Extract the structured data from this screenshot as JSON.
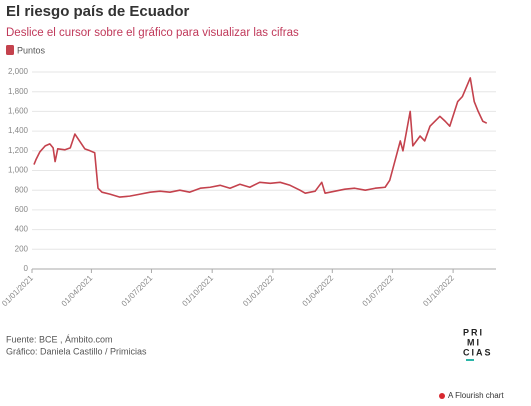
{
  "chart_data": {
    "type": "line",
    "title": "El riesgo país de Ecuador",
    "subtitle": "Deslice el cursor sobre el gráfico para visualizar las cifras",
    "x": [
      "2021-01-04",
      "2021-01-07",
      "2021-01-13",
      "2021-01-21",
      "2021-01-28",
      "2021-02-02",
      "2021-02-05",
      "2021-02-09",
      "2021-02-20",
      "2021-02-28",
      "2021-03-07",
      "2021-03-15",
      "2021-03-22",
      "2021-03-30",
      "2021-04-06",
      "2021-04-11",
      "2021-04-17",
      "2021-04-29",
      "2021-05-14",
      "2021-05-29",
      "2021-06-14",
      "2021-06-29",
      "2021-07-14",
      "2021-07-29",
      "2021-08-13",
      "2021-08-28",
      "2021-09-13",
      "2021-09-28",
      "2021-10-13",
      "2021-10-28",
      "2021-11-12",
      "2021-11-27",
      "2021-12-12",
      "2021-12-28",
      "2022-01-12",
      "2022-01-27",
      "2022-02-11",
      "2022-02-19",
      "2022-03-06",
      "2022-03-16",
      "2022-03-21",
      "2022-04-05",
      "2022-04-20",
      "2022-05-05",
      "2022-05-21",
      "2022-06-05",
      "2022-06-20",
      "2022-06-27",
      "2022-07-05",
      "2022-07-13",
      "2022-07-17",
      "2022-07-28",
      "2022-08-01",
      "2022-08-12",
      "2022-08-19",
      "2022-08-27",
      "2022-09-11",
      "2022-09-19",
      "2022-09-26",
      "2022-10-08",
      "2022-10-15",
      "2022-10-27",
      "2022-11-02",
      "2022-11-08",
      "2022-11-15",
      "2022-11-21"
    ],
    "series": [
      {
        "name": "Puntos",
        "color": "#c4424d",
        "values": [
          1060,
          1110,
          1190,
          1250,
          1270,
          1230,
          1090,
          1220,
          1210,
          1230,
          1370,
          1290,
          1220,
          1200,
          1180,
          820,
          780,
          760,
          730,
          740,
          760,
          780,
          790,
          780,
          800,
          780,
          820,
          830,
          850,
          820,
          860,
          830,
          880,
          870,
          880,
          850,
          800,
          770,
          790,
          880,
          770,
          790,
          810,
          820,
          800,
          820,
          830,
          900,
          1100,
          1300,
          1200,
          1600,
          1250,
          1350,
          1300,
          1450,
          1550,
          1500,
          1450,
          1700,
          1750,
          1940,
          1700,
          1600,
          1500,
          1480
        ]
      }
    ],
    "xlim": [
      "2021-01-01",
      "2022-12-05"
    ],
    "xticks": [
      {
        "value": "2021-01-01",
        "label": "01/01/2021"
      },
      {
        "value": "2021-04-01",
        "label": "01/04/2021"
      },
      {
        "value": "2021-07-01",
        "label": "01/07/2021"
      },
      {
        "value": "2021-10-01",
        "label": "01/10/2021"
      },
      {
        "value": "2022-01-01",
        "label": "01/01/2022"
      },
      {
        "value": "2022-04-01",
        "label": "01/04/2022"
      },
      {
        "value": "2022-07-01",
        "label": "01/07/2022"
      },
      {
        "value": "2022-10-01",
        "label": "01/10/2022"
      }
    ],
    "ylim": [
      0,
      2000
    ],
    "yticks": [
      0,
      200,
      400,
      600,
      800,
      {
        "value": 1000,
        "label": "1,000"
      },
      {
        "value": 1200,
        "label": "1,200"
      },
      {
        "value": 1400,
        "label": "1,400"
      },
      {
        "value": 1600,
        "label": "1,600"
      },
      {
        "value": 1800,
        "label": "1,800"
      },
      {
        "value": 2000,
        "label": "2,000"
      }
    ],
    "grid": true,
    "source": "Fuente: BCE , Ámbito.com",
    "credit": "Gráfico: Daniela Castillo / Primicias",
    "logo": [
      "PRI",
      "MI",
      "CIAS"
    ],
    "footer": "A Flourish chart"
  }
}
